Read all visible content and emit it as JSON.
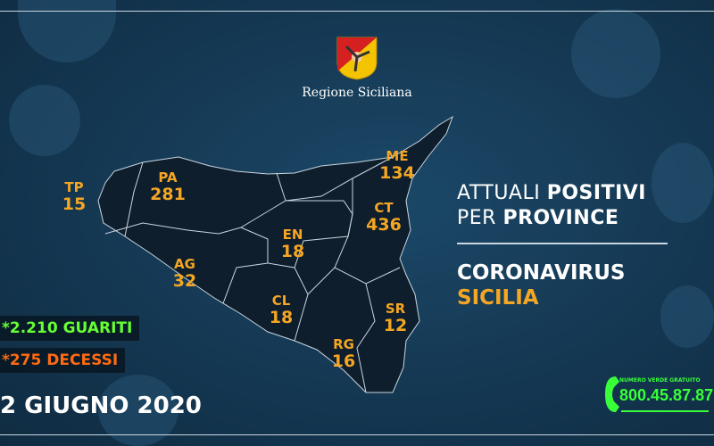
{
  "header": {
    "region_name": "Regione Siciliana",
    "logo": "trinacria-coat-of-arms"
  },
  "title": {
    "line1_a": "ATTUALI ",
    "line1_b": "POSITIVI",
    "line2_a": "PER ",
    "line2_b": "PROVINCE"
  },
  "subtitle": {
    "line1": "CORONAVIRUS",
    "line2": "SICILIA"
  },
  "provinces": [
    {
      "code": "TP",
      "value": "15"
    },
    {
      "code": "PA",
      "value": "281"
    },
    {
      "code": "ME",
      "value": "134"
    },
    {
      "code": "CT",
      "value": "436"
    },
    {
      "code": "EN",
      "value": "18"
    },
    {
      "code": "AG",
      "value": "32"
    },
    {
      "code": "CL",
      "value": "18"
    },
    {
      "code": "SR",
      "value": "12"
    },
    {
      "code": "RG",
      "value": "16"
    }
  ],
  "stats": {
    "recovered": "*2.210 GUARITI",
    "deaths": "*275 DECESSI"
  },
  "date": "2 GIUGNO 2020",
  "hotline": {
    "label": "NUMERO VERDE GRATUITO",
    "number": "800.45.87.87",
    "icon": "phone-icon"
  },
  "colors": {
    "background": "#163a56",
    "province_text": "#f5a623",
    "recovered": "#66ff33",
    "deaths": "#ff6a13",
    "hotline": "#39ff3a",
    "map_fill": "#0e1e2c"
  }
}
